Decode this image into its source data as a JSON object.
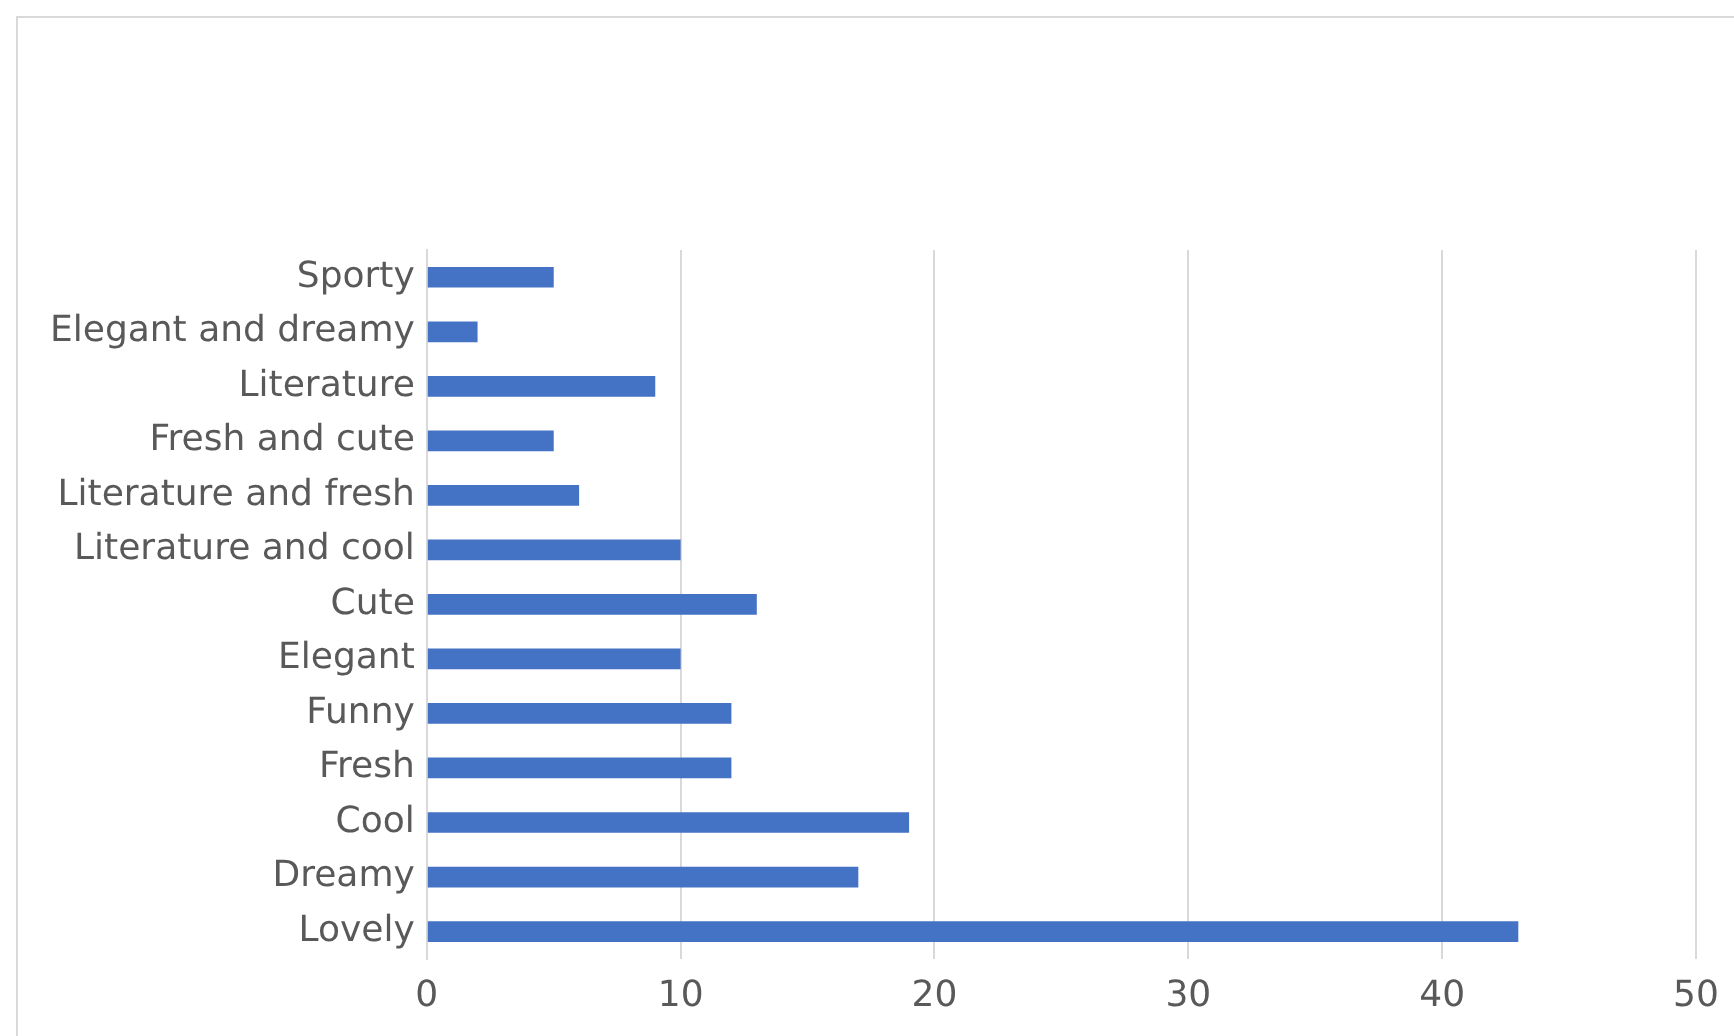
{
  "chart_data": {
    "type": "bar",
    "orientation": "horizontal",
    "categories": [
      "Sporty",
      "Elegant and dreamy",
      "Literature",
      "Fresh and cute",
      "Literature and fresh",
      "Literature and cool",
      "Cute",
      "Elegant",
      "Funny",
      "Fresh",
      "Cool",
      "Dreamy",
      "Lovely"
    ],
    "values": [
      5,
      2,
      9,
      5,
      6,
      10,
      13,
      10,
      12,
      12,
      19,
      17,
      43
    ],
    "color": "#4472c4",
    "xlim": [
      0,
      50
    ],
    "xticks": [
      0,
      10,
      20,
      30,
      40,
      50
    ],
    "grid": "x",
    "legend": false
  }
}
